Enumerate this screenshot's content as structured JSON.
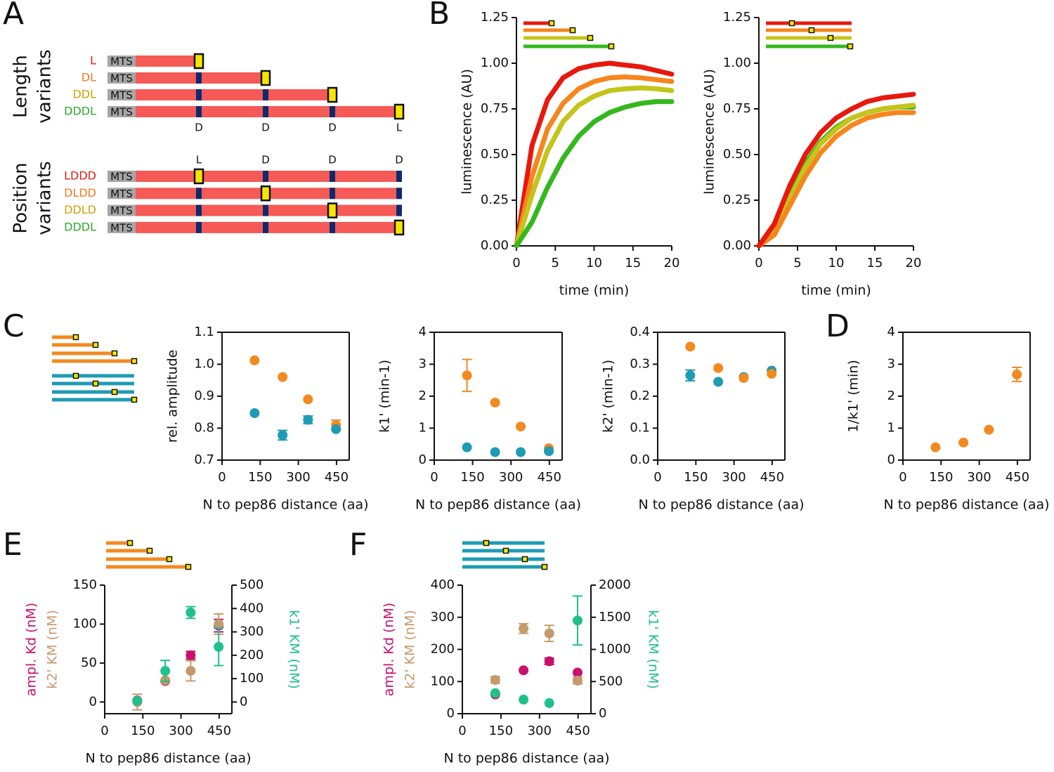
{
  "panel_labels": [
    "A",
    "B",
    "C",
    "D",
    "E",
    "F"
  ],
  "panel_a": {
    "length_title": [
      "Length",
      "variants"
    ],
    "position_title": [
      "Position",
      "variants"
    ],
    "length_rows": [
      "L",
      "DL",
      "DDL",
      "DDDL"
    ],
    "position_rows": [
      "LDDD",
      "DLDD",
      "DDLD",
      "DDDL"
    ],
    "row_colors": [
      "#e8180e",
      "#f07a1e",
      "#c9a400",
      "#2ca82c"
    ],
    "tag": "MTS",
    "length_sites": [
      "D",
      "D",
      "D",
      "L"
    ],
    "position_sites": [
      "L",
      "D",
      "D",
      "D"
    ]
  },
  "chart_data": [
    {
      "type": "line",
      "frame": "open",
      "ylabel": "luminescence (AU)",
      "xlabel": "time (min)",
      "x": [
        0,
        2,
        4,
        6,
        8,
        10,
        12,
        14,
        16,
        18,
        20
      ],
      "xlim": [
        0,
        20
      ],
      "xticks": [
        0,
        5,
        10,
        15,
        20
      ],
      "ylim": [
        0,
        1.25
      ],
      "yticks": [
        {
          "value": 0,
          "label": "0.00"
        },
        0.25,
        {
          "value": 0.5,
          "label": "0.50"
        },
        0.75,
        {
          "value": 1,
          "label": "1.00"
        },
        1.25
      ],
      "series": [
        {
          "color": "#e8180e",
          "values": [
            0,
            0.55,
            0.8,
            0.92,
            0.97,
            0.99,
            1.0,
            0.99,
            0.98,
            0.96,
            0.94
          ]
        },
        {
          "color": "#f5861e",
          "values": [
            0,
            0.38,
            0.64,
            0.78,
            0.86,
            0.9,
            0.92,
            0.925,
            0.92,
            0.91,
            0.9
          ]
        },
        {
          "color": "#c4c41a",
          "values": [
            0,
            0.28,
            0.52,
            0.68,
            0.77,
            0.82,
            0.85,
            0.86,
            0.865,
            0.86,
            0.85
          ]
        },
        {
          "color": "#34b81e",
          "values": [
            0,
            0.13,
            0.32,
            0.48,
            0.6,
            0.68,
            0.73,
            0.76,
            0.78,
            0.79,
            0.79
          ]
        }
      ]
    },
    {
      "type": "line",
      "frame": "open",
      "ylabel": "luminescence (AU)",
      "xlabel": "time (min)",
      "x": [
        0,
        2,
        4,
        6,
        8,
        10,
        12,
        14,
        16,
        18,
        20
      ],
      "xlim": [
        0,
        20
      ],
      "xticks": [
        0,
        5,
        10,
        15,
        20
      ],
      "ylim": [
        0,
        1.25
      ],
      "yticks": [
        {
          "value": 0,
          "label": "0.00"
        },
        0.25,
        {
          "value": 0.5,
          "label": "0.50"
        },
        0.75,
        {
          "value": 1,
          "label": "1.00"
        },
        1.25
      ],
      "series": [
        {
          "color": "#34b81e",
          "values": [
            0,
            0.09,
            0.28,
            0.45,
            0.57,
            0.65,
            0.7,
            0.73,
            0.75,
            0.76,
            0.76
          ]
        },
        {
          "color": "#c4c41a",
          "values": [
            0,
            0.08,
            0.26,
            0.43,
            0.56,
            0.64,
            0.7,
            0.73,
            0.75,
            0.76,
            0.77
          ]
        },
        {
          "color": "#f5861e",
          "values": [
            0,
            0.06,
            0.22,
            0.38,
            0.51,
            0.6,
            0.66,
            0.7,
            0.72,
            0.73,
            0.73
          ]
        },
        {
          "color": "#e8180e",
          "values": [
            0,
            0.12,
            0.33,
            0.5,
            0.62,
            0.7,
            0.75,
            0.79,
            0.81,
            0.82,
            0.83
          ]
        }
      ]
    },
    {
      "type": "scatter",
      "frame": "box",
      "ylabel": "rel. amplitude",
      "xlabel": "N to pep86 distance (aa)",
      "x": [
        128,
        238,
        338,
        448
      ],
      "xlim": [
        0,
        500
      ],
      "xticks": [
        0,
        150,
        300,
        450
      ],
      "ylim": [
        0.7,
        1.1
      ],
      "yticks": [
        0.7,
        0.8,
        0.9,
        {
          "value": 1,
          "label": "1.0"
        },
        1.1
      ],
      "series": [
        {
          "color": "#f28a20",
          "values": [
            1.012,
            0.96,
            0.89,
            0.81
          ],
          "errors": [
            null,
            null,
            null,
            0.015
          ]
        },
        {
          "color": "#1e9bb5",
          "values": [
            0.847,
            0.778,
            0.826,
            0.797
          ],
          "errors": [
            null,
            0.015,
            0.012,
            null
          ]
        }
      ]
    },
    {
      "type": "scatter",
      "frame": "box",
      "ylabel": "k1' (min-1)",
      "xlabel": "N to pep86 distance (aa)",
      "x": [
        128,
        238,
        338,
        448
      ],
      "xlim": [
        0,
        500
      ],
      "xticks": [
        0,
        150,
        300,
        450
      ],
      "ylim": [
        0,
        4
      ],
      "yticks": [
        0,
        1,
        2,
        3,
        4
      ],
      "series": [
        {
          "color": "#f28a20",
          "values": [
            2.65,
            1.8,
            1.05,
            0.37
          ],
          "errors": [
            0.5,
            null,
            null,
            null
          ]
        },
        {
          "color": "#1e9bb5",
          "values": [
            0.4,
            0.25,
            0.25,
            0.28
          ],
          "errors": [
            null,
            null,
            null,
            null
          ]
        }
      ]
    },
    {
      "type": "scatter",
      "frame": "box",
      "ylabel": "k2' (min-1)",
      "xlabel": "N to pep86 distance (aa)",
      "x": [
        128,
        238,
        338,
        448
      ],
      "xlim": [
        0,
        500
      ],
      "xticks": [
        0,
        150,
        300,
        450
      ],
      "ylim": [
        0,
        0.4
      ],
      "yticks": [
        {
          "value": 0,
          "label": "0.0"
        },
        0.1,
        0.2,
        0.3,
        0.4
      ],
      "series": [
        {
          "color": "#1e9bb5",
          "values": [
            0.265,
            0.245,
            0.26,
            0.28
          ],
          "errors": [
            0.017,
            null,
            null,
            null
          ]
        },
        {
          "color": "#f28a20",
          "values": [
            0.355,
            0.288,
            0.257,
            0.27
          ],
          "errors": [
            null,
            null,
            null,
            null
          ]
        }
      ]
    },
    {
      "type": "scatter",
      "frame": "box",
      "ylabel": "1/k1' (min)",
      "xlabel": "N to pep86 distance (aa)",
      "x": [
        128,
        238,
        338,
        448
      ],
      "xlim": [
        0,
        500
      ],
      "xticks": [
        0,
        150,
        300,
        450
      ],
      "ylim": [
        0,
        4
      ],
      "yticks": [
        0,
        1,
        2,
        3,
        4
      ],
      "series": [
        {
          "color": "#f28a20",
          "values": [
            0.4,
            0.55,
            0.95,
            2.68
          ],
          "errors": [
            null,
            null,
            null,
            0.22
          ]
        }
      ]
    },
    {
      "type": "scatter",
      "frame": "open",
      "ylabel": [
        "ampl. Kd (nM)",
        "k2' KM (nM)"
      ],
      "y2label": "k1' KM (nM)",
      "xlabel": "N to pep86 distance (aa)",
      "x": [
        128,
        238,
        338,
        448
      ],
      "xlim": [
        0,
        500
      ],
      "xticks": [
        0,
        150,
        300,
        450
      ],
      "ylim": [
        -15,
        150
      ],
      "yticks": [
        0,
        50,
        100,
        150
      ],
      "y2lim": [
        -50,
        500
      ],
      "y2ticks": [
        0,
        100,
        200,
        300,
        400,
        500
      ],
      "series": [
        {
          "color": "#c8106e",
          "values": [
            2,
            27,
            60,
            98
          ],
          "errors": [
            null,
            null,
            5,
            8
          ]
        },
        {
          "color": "#c49a6c",
          "values": [
            0,
            28,
            40,
            100
          ],
          "errors": [
            10,
            null,
            13,
            13
          ]
        },
        {
          "color": "#1fc08a",
          "axis": "y2",
          "values": [
            5,
            133,
            383,
            236
          ],
          "errors": [
            null,
            45,
            25,
            80
          ]
        }
      ]
    },
    {
      "type": "scatter",
      "frame": "open",
      "ylabel": [
        "ampl. Kd (nM)",
        "k2' KM (nM)"
      ],
      "y2label": "k1' KM (nM)",
      "xlabel": "N to pep86 distance (aa)",
      "x": [
        128,
        238,
        338,
        448
      ],
      "xlim": [
        0,
        500
      ],
      "xticks": [
        0,
        150,
        300,
        450
      ],
      "ylim": [
        0,
        400
      ],
      "yticks": [
        0,
        100,
        200,
        300,
        400
      ],
      "y2lim": [
        0,
        2000
      ],
      "y2ticks": [
        0,
        500,
        1000,
        1500,
        2000
      ],
      "series": [
        {
          "color": "#c8106e",
          "values": [
            60,
            135,
            163,
            128
          ],
          "errors": [
            null,
            null,
            10,
            null
          ]
        },
        {
          "color": "#c49a6c",
          "values": [
            105,
            265,
            250,
            103
          ],
          "errors": [
            10,
            15,
            25,
            10
          ]
        },
        {
          "color": "#1fc08a",
          "axis": "y2",
          "values": [
            320,
            220,
            165,
            1450
          ],
          "errors": [
            null,
            null,
            null,
            380
          ]
        }
      ]
    }
  ]
}
